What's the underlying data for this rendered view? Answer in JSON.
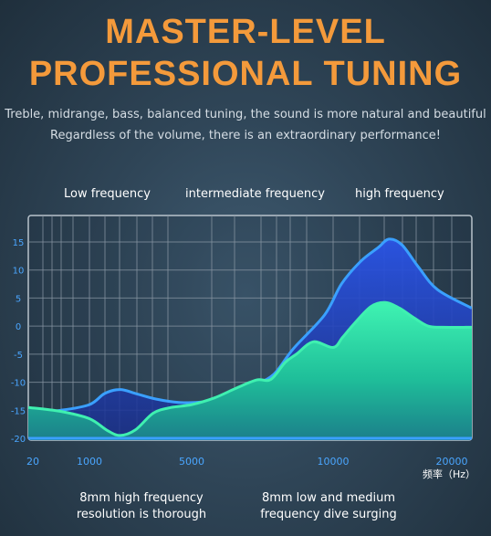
{
  "header": {
    "title_line1": "MASTER-LEVEL",
    "title_line2": "PROFESSIONAL TUNING",
    "subtitle_line1": "Treble, midrange, bass, balanced tuning, the sound is more natural and beautiful",
    "subtitle_line2": "Regardless of the volume, there is an extraordinary performance!"
  },
  "bands": {
    "low": "Low frequency",
    "mid": "intermediate frequency",
    "high": "high frequency"
  },
  "captions": {
    "left_line1": "8mm high frequency",
    "left_line2": "resolution is thorough",
    "right_line1": "8mm low and medium",
    "right_line2": "frequency dive surging"
  },
  "colors": {
    "title": "#f49a3b",
    "blue_curve": "#3aa0ff",
    "green_curve": "#3ff0b0",
    "tick_label": "#4aa6ff"
  },
  "chart_data": {
    "type": "area",
    "x_unit_label": "频率（Hz）",
    "x_tick_labels": [
      "20",
      "1000",
      "5000",
      "10000",
      "20000"
    ],
    "x_tick_values": [
      20,
      1000,
      5000,
      10000,
      20000
    ],
    "y_tick_labels": [
      "15",
      "10",
      "5",
      "0",
      "-5",
      "-10",
      "-15",
      "-20"
    ],
    "y_tick_values": [
      15,
      10,
      5,
      0,
      -5,
      -10,
      -15,
      -20
    ],
    "ylim": [
      -20,
      17
    ],
    "grid": true,
    "series": [
      {
        "color": "#3aa0ff",
        "points": [
          [
            20,
            -15.5
          ],
          [
            500,
            -15
          ],
          [
            1000,
            -14
          ],
          [
            1600,
            -12
          ],
          [
            2200,
            -11.3
          ],
          [
            2800,
            -12
          ],
          [
            3600,
            -13
          ],
          [
            4500,
            -13.6
          ],
          [
            5400,
            -13.5
          ],
          [
            6300,
            -12.5
          ],
          [
            7200,
            -10.5
          ],
          [
            7900,
            -8.6
          ],
          [
            8600,
            -4
          ],
          [
            9700,
            2
          ],
          [
            10700,
            7.5
          ],
          [
            12300,
            11.5
          ],
          [
            13800,
            14
          ],
          [
            14700,
            15.5
          ],
          [
            15800,
            14.5
          ],
          [
            17200,
            10.5
          ],
          [
            18800,
            6.5
          ],
          [
            20000,
            3.2
          ]
        ]
      },
      {
        "color": "#3ff0b0",
        "points": [
          [
            20,
            -14.5
          ],
          [
            500,
            -15.2
          ],
          [
            1000,
            -16.5
          ],
          [
            1700,
            -18.6
          ],
          [
            2200,
            -19.5
          ],
          [
            2800,
            -18.5
          ],
          [
            3500,
            -15.5
          ],
          [
            4200,
            -14.5
          ],
          [
            5000,
            -14
          ],
          [
            5800,
            -12.8
          ],
          [
            6600,
            -11
          ],
          [
            7300,
            -9.6
          ],
          [
            7800,
            -9.5
          ],
          [
            8300,
            -6.5
          ],
          [
            8700,
            -5
          ],
          [
            9300,
            -2.8
          ],
          [
            10000,
            -3.8
          ],
          [
            10800,
            -2
          ],
          [
            11800,
            0.5
          ],
          [
            13200,
            3.5
          ],
          [
            14400,
            4.2
          ],
          [
            15600,
            3.2
          ],
          [
            16800,
            1.5
          ],
          [
            18000,
            0
          ],
          [
            19200,
            -0.2
          ],
          [
            20000,
            -0.2
          ]
        ]
      }
    ]
  }
}
